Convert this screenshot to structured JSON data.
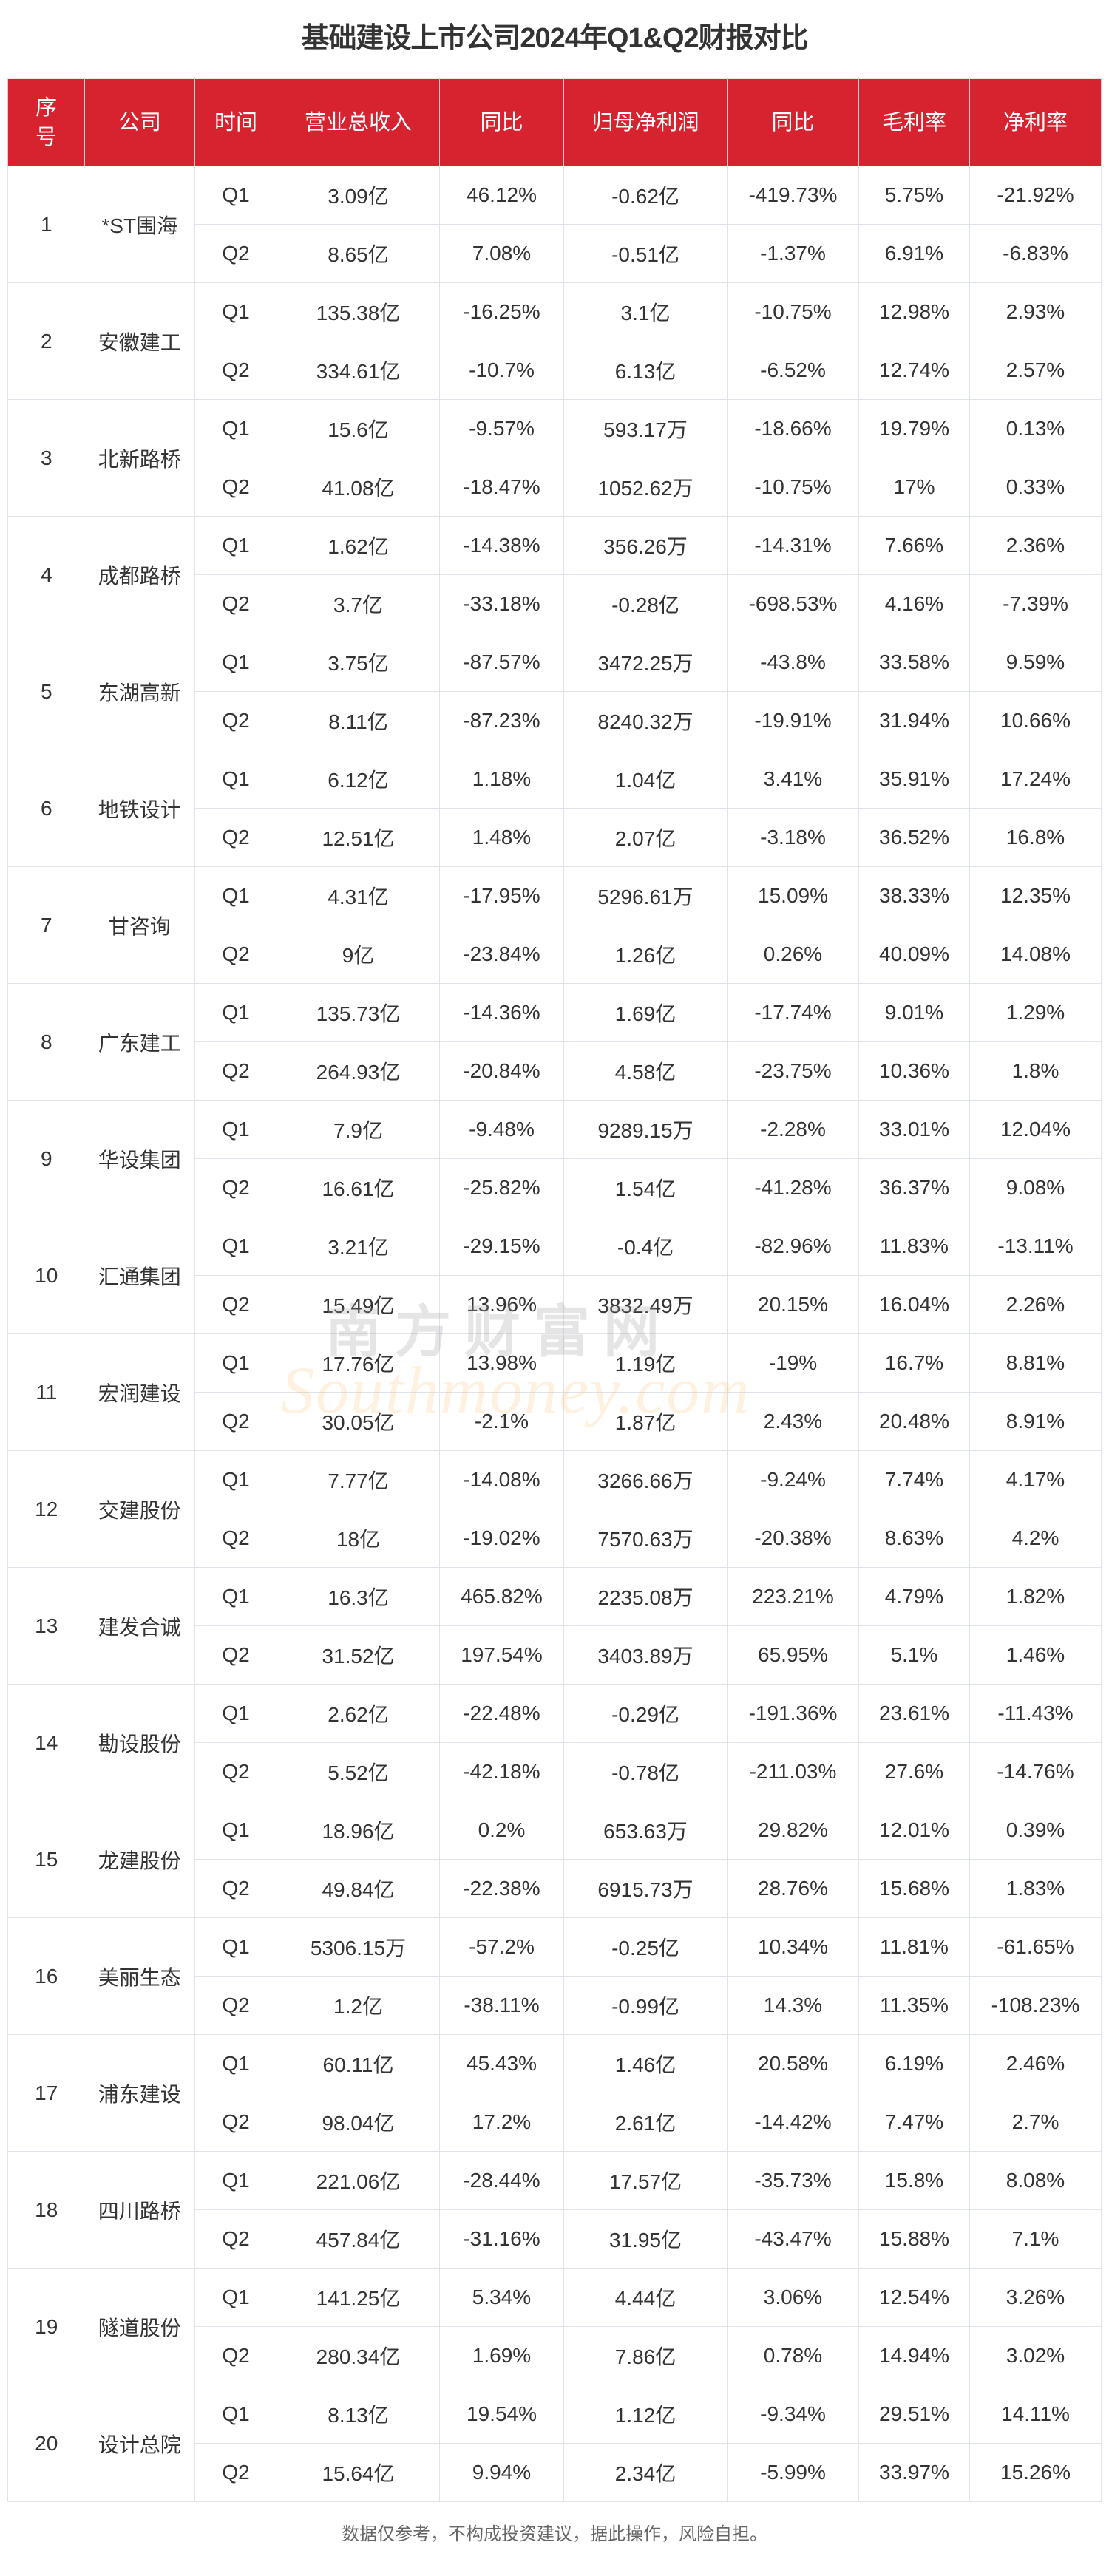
{
  "title": "基础建设上市公司2024年Q1&Q2财报对比",
  "headers": {
    "no": "序号",
    "company": "公司",
    "period": "时间",
    "revenue": "营业总收入",
    "revenue_yoy": "同比",
    "net_profit": "归母净利润",
    "net_profit_yoy": "同比",
    "gross_margin": "毛利率",
    "net_margin": "净利率"
  },
  "rows": [
    {
      "no": "1",
      "company": "*ST围海",
      "q1": {
        "period": "Q1",
        "revenue": "3.09亿",
        "revenue_yoy": "46.12%",
        "net_profit": "-0.62亿",
        "net_profit_yoy": "-419.73%",
        "gross_margin": "5.75%",
        "net_margin": "-21.92%"
      },
      "q2": {
        "period": "Q2",
        "revenue": "8.65亿",
        "revenue_yoy": "7.08%",
        "net_profit": "-0.51亿",
        "net_profit_yoy": "-1.37%",
        "gross_margin": "6.91%",
        "net_margin": "-6.83%"
      }
    },
    {
      "no": "2",
      "company": "安徽建工",
      "q1": {
        "period": "Q1",
        "revenue": "135.38亿",
        "revenue_yoy": "-16.25%",
        "net_profit": "3.1亿",
        "net_profit_yoy": "-10.75%",
        "gross_margin": "12.98%",
        "net_margin": "2.93%"
      },
      "q2": {
        "period": "Q2",
        "revenue": "334.61亿",
        "revenue_yoy": "-10.7%",
        "net_profit": "6.13亿",
        "net_profit_yoy": "-6.52%",
        "gross_margin": "12.74%",
        "net_margin": "2.57%"
      }
    },
    {
      "no": "3",
      "company": "北新路桥",
      "q1": {
        "period": "Q1",
        "revenue": "15.6亿",
        "revenue_yoy": "-9.57%",
        "net_profit": "593.17万",
        "net_profit_yoy": "-18.66%",
        "gross_margin": "19.79%",
        "net_margin": "0.13%"
      },
      "q2": {
        "period": "Q2",
        "revenue": "41.08亿",
        "revenue_yoy": "-18.47%",
        "net_profit": "1052.62万",
        "net_profit_yoy": "-10.75%",
        "gross_margin": "17%",
        "net_margin": "0.33%"
      }
    },
    {
      "no": "4",
      "company": "成都路桥",
      "q1": {
        "period": "Q1",
        "revenue": "1.62亿",
        "revenue_yoy": "-14.38%",
        "net_profit": "356.26万",
        "net_profit_yoy": "-14.31%",
        "gross_margin": "7.66%",
        "net_margin": "2.36%"
      },
      "q2": {
        "period": "Q2",
        "revenue": "3.7亿",
        "revenue_yoy": "-33.18%",
        "net_profit": "-0.28亿",
        "net_profit_yoy": "-698.53%",
        "gross_margin": "4.16%",
        "net_margin": "-7.39%"
      }
    },
    {
      "no": "5",
      "company": "东湖高新",
      "q1": {
        "period": "Q1",
        "revenue": "3.75亿",
        "revenue_yoy": "-87.57%",
        "net_profit": "3472.25万",
        "net_profit_yoy": "-43.8%",
        "gross_margin": "33.58%",
        "net_margin": "9.59%"
      },
      "q2": {
        "period": "Q2",
        "revenue": "8.11亿",
        "revenue_yoy": "-87.23%",
        "net_profit": "8240.32万",
        "net_profit_yoy": "-19.91%",
        "gross_margin": "31.94%",
        "net_margin": "10.66%"
      }
    },
    {
      "no": "6",
      "company": "地铁设计",
      "q1": {
        "period": "Q1",
        "revenue": "6.12亿",
        "revenue_yoy": "1.18%",
        "net_profit": "1.04亿",
        "net_profit_yoy": "3.41%",
        "gross_margin": "35.91%",
        "net_margin": "17.24%"
      },
      "q2": {
        "period": "Q2",
        "revenue": "12.51亿",
        "revenue_yoy": "1.48%",
        "net_profit": "2.07亿",
        "net_profit_yoy": "-3.18%",
        "gross_margin": "36.52%",
        "net_margin": "16.8%"
      }
    },
    {
      "no": "7",
      "company": "甘咨询",
      "q1": {
        "period": "Q1",
        "revenue": "4.31亿",
        "revenue_yoy": "-17.95%",
        "net_profit": "5296.61万",
        "net_profit_yoy": "15.09%",
        "gross_margin": "38.33%",
        "net_margin": "12.35%"
      },
      "q2": {
        "period": "Q2",
        "revenue": "9亿",
        "revenue_yoy": "-23.84%",
        "net_profit": "1.26亿",
        "net_profit_yoy": "0.26%",
        "gross_margin": "40.09%",
        "net_margin": "14.08%"
      }
    },
    {
      "no": "8",
      "company": "广东建工",
      "q1": {
        "period": "Q1",
        "revenue": "135.73亿",
        "revenue_yoy": "-14.36%",
        "net_profit": "1.69亿",
        "net_profit_yoy": "-17.74%",
        "gross_margin": "9.01%",
        "net_margin": "1.29%"
      },
      "q2": {
        "period": "Q2",
        "revenue": "264.93亿",
        "revenue_yoy": "-20.84%",
        "net_profit": "4.58亿",
        "net_profit_yoy": "-23.75%",
        "gross_margin": "10.36%",
        "net_margin": "1.8%"
      }
    },
    {
      "no": "9",
      "company": "华设集团",
      "q1": {
        "period": "Q1",
        "revenue": "7.9亿",
        "revenue_yoy": "-9.48%",
        "net_profit": "9289.15万",
        "net_profit_yoy": "-2.28%",
        "gross_margin": "33.01%",
        "net_margin": "12.04%"
      },
      "q2": {
        "period": "Q2",
        "revenue": "16.61亿",
        "revenue_yoy": "-25.82%",
        "net_profit": "1.54亿",
        "net_profit_yoy": "-41.28%",
        "gross_margin": "36.37%",
        "net_margin": "9.08%"
      }
    },
    {
      "no": "10",
      "company": "汇通集团",
      "q1": {
        "period": "Q1",
        "revenue": "3.21亿",
        "revenue_yoy": "-29.15%",
        "net_profit": "-0.4亿",
        "net_profit_yoy": "-82.96%",
        "gross_margin": "11.83%",
        "net_margin": "-13.11%"
      },
      "q2": {
        "period": "Q2",
        "revenue": "15.49亿",
        "revenue_yoy": "13.96%",
        "net_profit": "3832.49万",
        "net_profit_yoy": "20.15%",
        "gross_margin": "16.04%",
        "net_margin": "2.26%"
      }
    },
    {
      "no": "11",
      "company": "宏润建设",
      "q1": {
        "period": "Q1",
        "revenue": "17.76亿",
        "revenue_yoy": "13.98%",
        "net_profit": "1.19亿",
        "net_profit_yoy": "-19%",
        "gross_margin": "16.7%",
        "net_margin": "8.81%"
      },
      "q2": {
        "period": "Q2",
        "revenue": "30.05亿",
        "revenue_yoy": "-2.1%",
        "net_profit": "1.87亿",
        "net_profit_yoy": "2.43%",
        "gross_margin": "20.48%",
        "net_margin": "8.91%"
      }
    },
    {
      "no": "12",
      "company": "交建股份",
      "q1": {
        "period": "Q1",
        "revenue": "7.77亿",
        "revenue_yoy": "-14.08%",
        "net_profit": "3266.66万",
        "net_profit_yoy": "-9.24%",
        "gross_margin": "7.74%",
        "net_margin": "4.17%"
      },
      "q2": {
        "period": "Q2",
        "revenue": "18亿",
        "revenue_yoy": "-19.02%",
        "net_profit": "7570.63万",
        "net_profit_yoy": "-20.38%",
        "gross_margin": "8.63%",
        "net_margin": "4.2%"
      }
    },
    {
      "no": "13",
      "company": "建发合诚",
      "q1": {
        "period": "Q1",
        "revenue": "16.3亿",
        "revenue_yoy": "465.82%",
        "net_profit": "2235.08万",
        "net_profit_yoy": "223.21%",
        "gross_margin": "4.79%",
        "net_margin": "1.82%"
      },
      "q2": {
        "period": "Q2",
        "revenue": "31.52亿",
        "revenue_yoy": "197.54%",
        "net_profit": "3403.89万",
        "net_profit_yoy": "65.95%",
        "gross_margin": "5.1%",
        "net_margin": "1.46%"
      }
    },
    {
      "no": "14",
      "company": "勘设股份",
      "q1": {
        "period": "Q1",
        "revenue": "2.62亿",
        "revenue_yoy": "-22.48%",
        "net_profit": "-0.29亿",
        "net_profit_yoy": "-191.36%",
        "gross_margin": "23.61%",
        "net_margin": "-11.43%"
      },
      "q2": {
        "period": "Q2",
        "revenue": "5.52亿",
        "revenue_yoy": "-42.18%",
        "net_profit": "-0.78亿",
        "net_profit_yoy": "-211.03%",
        "gross_margin": "27.6%",
        "net_margin": "-14.76%"
      }
    },
    {
      "no": "15",
      "company": "龙建股份",
      "q1": {
        "period": "Q1",
        "revenue": "18.96亿",
        "revenue_yoy": "0.2%",
        "net_profit": "653.63万",
        "net_profit_yoy": "29.82%",
        "gross_margin": "12.01%",
        "net_margin": "0.39%"
      },
      "q2": {
        "period": "Q2",
        "revenue": "49.84亿",
        "revenue_yoy": "-22.38%",
        "net_profit": "6915.73万",
        "net_profit_yoy": "28.76%",
        "gross_margin": "15.68%",
        "net_margin": "1.83%"
      }
    },
    {
      "no": "16",
      "company": "美丽生态",
      "q1": {
        "period": "Q1",
        "revenue": "5306.15万",
        "revenue_yoy": "-57.2%",
        "net_profit": "-0.25亿",
        "net_profit_yoy": "10.34%",
        "gross_margin": "11.81%",
        "net_margin": "-61.65%"
      },
      "q2": {
        "period": "Q2",
        "revenue": "1.2亿",
        "revenue_yoy": "-38.11%",
        "net_profit": "-0.99亿",
        "net_profit_yoy": "14.3%",
        "gross_margin": "11.35%",
        "net_margin": "-108.23%"
      }
    },
    {
      "no": "17",
      "company": "浦东建设",
      "q1": {
        "period": "Q1",
        "revenue": "60.11亿",
        "revenue_yoy": "45.43%",
        "net_profit": "1.46亿",
        "net_profit_yoy": "20.58%",
        "gross_margin": "6.19%",
        "net_margin": "2.46%"
      },
      "q2": {
        "period": "Q2",
        "revenue": "98.04亿",
        "revenue_yoy": "17.2%",
        "net_profit": "2.61亿",
        "net_profit_yoy": "-14.42%",
        "gross_margin": "7.47%",
        "net_margin": "2.7%"
      }
    },
    {
      "no": "18",
      "company": "四川路桥",
      "q1": {
        "period": "Q1",
        "revenue": "221.06亿",
        "revenue_yoy": "-28.44%",
        "net_profit": "17.57亿",
        "net_profit_yoy": "-35.73%",
        "gross_margin": "15.8%",
        "net_margin": "8.08%"
      },
      "q2": {
        "period": "Q2",
        "revenue": "457.84亿",
        "revenue_yoy": "-31.16%",
        "net_profit": "31.95亿",
        "net_profit_yoy": "-43.47%",
        "gross_margin": "15.88%",
        "net_margin": "7.1%"
      }
    },
    {
      "no": "19",
      "company": "隧道股份",
      "q1": {
        "period": "Q1",
        "revenue": "141.25亿",
        "revenue_yoy": "5.34%",
        "net_profit": "4.44亿",
        "net_profit_yoy": "3.06%",
        "gross_margin": "12.54%",
        "net_margin": "3.26%"
      },
      "q2": {
        "period": "Q2",
        "revenue": "280.34亿",
        "revenue_yoy": "1.69%",
        "net_profit": "7.86亿",
        "net_profit_yoy": "0.78%",
        "gross_margin": "14.94%",
        "net_margin": "3.02%"
      }
    },
    {
      "no": "20",
      "company": "设计总院",
      "q1": {
        "period": "Q1",
        "revenue": "8.13亿",
        "revenue_yoy": "19.54%",
        "net_profit": "1.12亿",
        "net_profit_yoy": "-9.34%",
        "gross_margin": "29.51%",
        "net_margin": "14.11%"
      },
      "q2": {
        "period": "Q2",
        "revenue": "15.64亿",
        "revenue_yoy": "9.94%",
        "net_profit": "2.34亿",
        "net_profit_yoy": "-5.99%",
        "gross_margin": "33.97%",
        "net_margin": "15.26%"
      }
    }
  ],
  "footer": "数据仅参考，不构成投资建议，据此操作，风险自担。",
  "watermark": {
    "cn": "南方财富网",
    "en": "Southmoney.com"
  },
  "colors": {
    "header_bg": "#d7232f",
    "header_text": "#ffffff",
    "body_text": "#333333",
    "border": "#dfe3ea",
    "footer_text": "#666666"
  }
}
